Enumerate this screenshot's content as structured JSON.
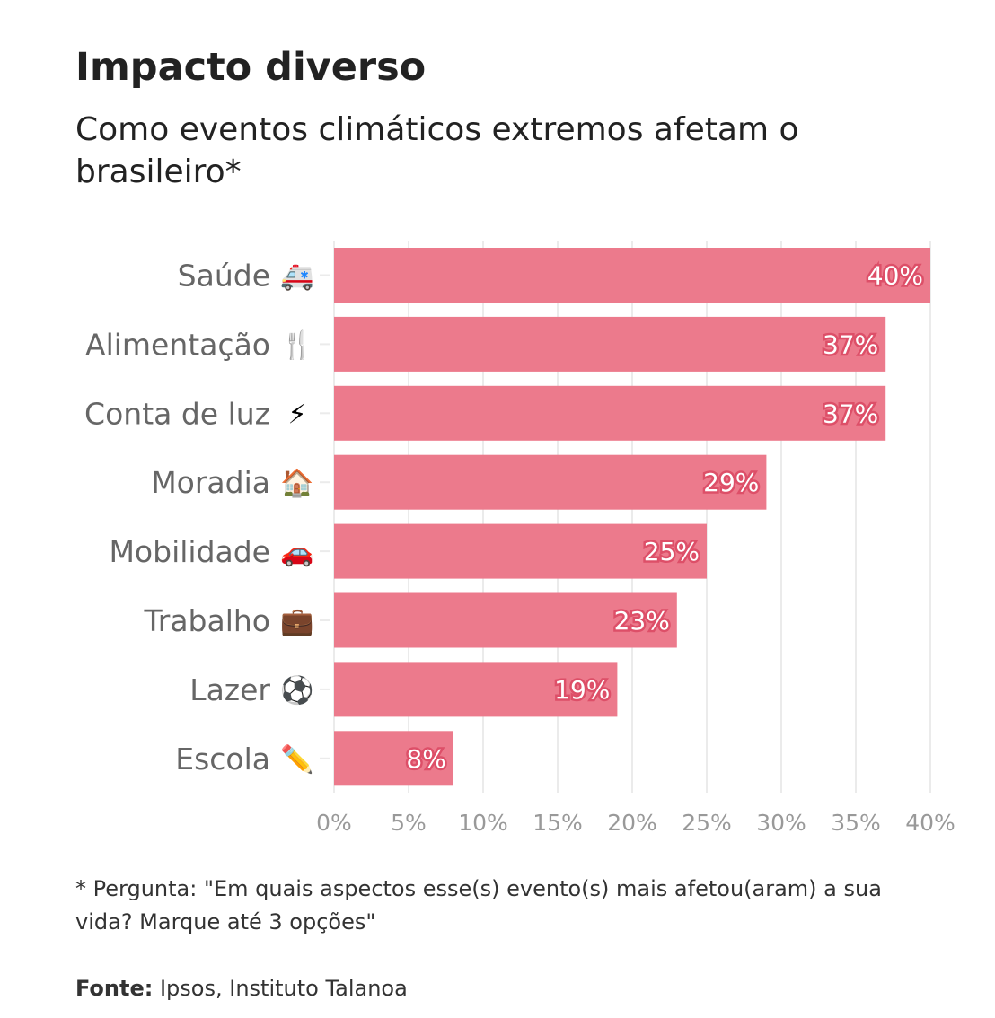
{
  "title": "Impacto diverso",
  "subtitle": "Como eventos climáticos extremos afetam o brasileiro*",
  "note": "* Pergunta: \"Em quais aspectos esse(s) evento(s) mais afetou(aram) a sua vida? Marque até 3 opções\"",
  "source_label": "Fonte:",
  "source_text": " Ipsos, Instituto Talanoa",
  "colors": {
    "bar": "#ec7a8c",
    "label_outline": "#dd4f68",
    "grid": "#ebebeb"
  },
  "chart_data": {
    "type": "bar",
    "orientation": "horizontal",
    "categories": [
      "Saúde 🚑",
      "Alimentação 🍴",
      "Conta de luz ⚡",
      "Moradia 🏠",
      "Mobilidade 🚗",
      "Trabalho 💼",
      "Lazer ⚽",
      "Escola ✏️"
    ],
    "values": [
      40,
      37,
      37,
      29,
      25,
      23,
      19,
      8
    ],
    "data_labels": [
      "40%",
      "37%",
      "37%",
      "29%",
      "25%",
      "23%",
      "19%",
      "8%"
    ],
    "xlim": [
      0,
      40
    ],
    "xticks": [
      0,
      5,
      10,
      15,
      20,
      25,
      30,
      35,
      40
    ],
    "xtick_labels": [
      "0%",
      "5%",
      "10%",
      "15%",
      "20%",
      "25%",
      "30%",
      "35%",
      "40%"
    ],
    "grid": true,
    "xlabel": "",
    "ylabel": ""
  }
}
